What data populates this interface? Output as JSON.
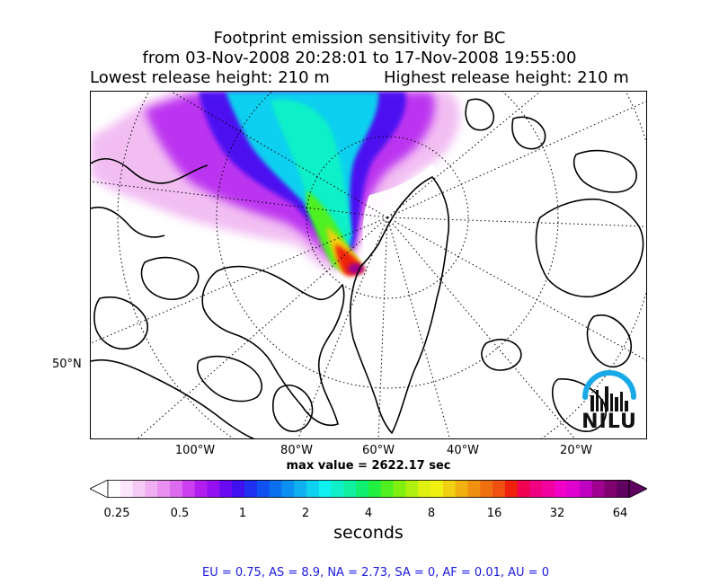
{
  "title": {
    "line1": "Footprint emission sensitivity for BC",
    "line2": "from 03-Nov-2008 20:28:01 to 17-Nov-2008 19:55:00",
    "lowest": "Lowest release height: 210 m",
    "highest": "Highest release height: 210 m"
  },
  "map": {
    "x_ticks": [
      "100°W",
      "80°W",
      "60°W",
      "40°W",
      "20°W"
    ],
    "y_ticks": [
      "50°N"
    ]
  },
  "max_value": "max value = 2622.17 sec",
  "colorbar": {
    "ticks": [
      "0.25",
      "0.5",
      "1",
      "2",
      "4",
      "8",
      "16",
      "32",
      "64"
    ],
    "label": "seconds",
    "colors": [
      "#ffffff",
      "#fbe6fb",
      "#f5cbf5",
      "#efaef0",
      "#e88ff0",
      "#dd6bf0",
      "#cc3ff0",
      "#b21ef0",
      "#9410f0",
      "#6a0af0",
      "#4010f0",
      "#2030f0",
      "#1050f0",
      "#0a70f0",
      "#0a90f0",
      "#10b0f0",
      "#10d0f0",
      "#10f0f0",
      "#10f0c8",
      "#10f0a0",
      "#10f070",
      "#20f040",
      "#50f020",
      "#80f010",
      "#b0f010",
      "#e0f010",
      "#f0f010",
      "#f0d010",
      "#f0b010",
      "#f09010",
      "#f07010",
      "#f05010",
      "#f02010",
      "#f00050",
      "#f00080",
      "#f000a0",
      "#f000c8",
      "#e000d0",
      "#c000c0",
      "#a00090",
      "#800070",
      "#600060"
    ]
  },
  "logo": {
    "text": "NILU"
  },
  "footer": "EU = 0.75,  AS = 8.9,  NA = 2.73,  SA = 0,  AF = 0.01,  AU = 0"
}
